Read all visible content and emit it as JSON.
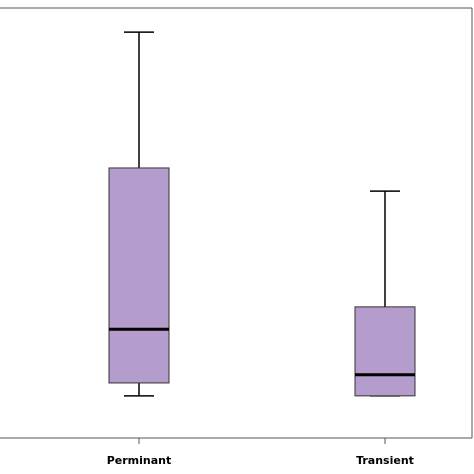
{
  "chart_data": {
    "type": "box",
    "categories": [
      "Perminant",
      "Transient"
    ],
    "boxes": [
      {
        "min": 9.8,
        "q1": 12.8,
        "median": 25.3,
        "q3": 62.8,
        "max": 94.4
      },
      {
        "min": 9.8,
        "q1": 9.8,
        "median": 14.7,
        "q3": 30.5,
        "max": 57.4
      }
    ],
    "color": "#b49ccc",
    "ylim": [
      0,
      100
    ]
  }
}
